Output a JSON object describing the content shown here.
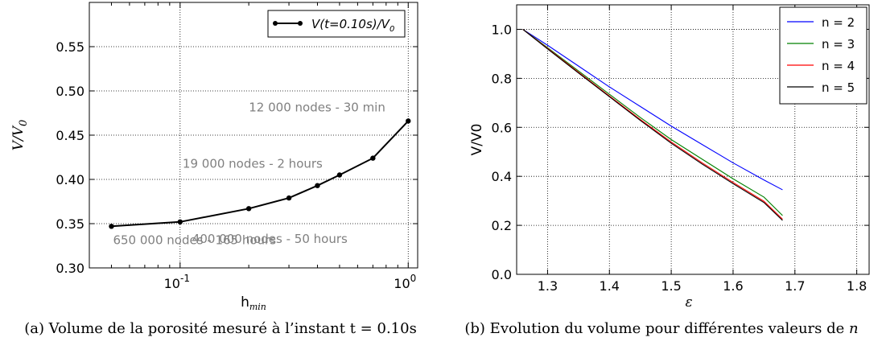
{
  "chart_data": [
    {
      "type": "line",
      "xscale": "log",
      "xlim": [
        0.04,
        1.1
      ],
      "ylim": [
        0.3,
        0.6
      ],
      "yticks": [
        "0.30",
        "0.35",
        "0.40",
        "0.45",
        "0.50",
        "0.55"
      ],
      "xticks": [
        {
          "value": 0.1,
          "base": "10",
          "exp": "-1"
        },
        {
          "value": 1.0,
          "base": "10",
          "exp": "0"
        }
      ],
      "xlabel_main": "h",
      "xlabel_sub": "min",
      "ylabel": "V/V",
      "ylabel_sub": "0",
      "grid": true,
      "legend_position": "top-right",
      "legend": "V(t=0.10s)/V",
      "legend_sub": "0",
      "series": [
        {
          "x": [
            0.05,
            0.1,
            0.2,
            0.3,
            0.4,
            0.5,
            0.7,
            1.0
          ],
          "values": [
            0.347,
            0.352,
            0.367,
            0.379,
            0.393,
            0.405,
            0.424,
            0.466
          ],
          "color": "#000000"
        }
      ],
      "annotations": [
        {
          "text": "12 000 nodes - 30 min",
          "x": 1.0,
          "y": 0.466
        },
        {
          "text": "19 000 nodes - 2 hours",
          "x": 0.5,
          "y": 0.405
        },
        {
          "text": "400 000 nodes - 50 hours",
          "x": 0.1,
          "y": 0.352
        },
        {
          "text": "650 000 nodes - 165 hours",
          "x": 0.05,
          "y": 0.347
        }
      ],
      "caption": "(a)  Volume de la porosité mesuré à l’instant t = 0.10s"
    },
    {
      "type": "line",
      "xlim": [
        1.25,
        1.82
      ],
      "ylim": [
        0.0,
        1.1
      ],
      "xticks": [
        "1.3",
        "1.4",
        "1.5",
        "1.6",
        "1.7",
        "1.8"
      ],
      "yticks": [
        "0.0",
        "0.2",
        "0.4",
        "0.6",
        "0.8",
        "1.0"
      ],
      "xlabel": "ε",
      "ylabel": "V/V0",
      "grid": true,
      "legend_position": "top-right",
      "series": [
        {
          "name": "n = 2",
          "color": "#0000ff",
          "x": [
            1.26,
            1.3,
            1.35,
            1.4,
            1.45,
            1.5,
            1.55,
            1.6,
            1.65,
            1.68
          ],
          "values": [
            1.0,
            0.935,
            0.85,
            0.765,
            0.685,
            0.605,
            0.53,
            0.455,
            0.385,
            0.345
          ]
        },
        {
          "name": "n = 3",
          "color": "#008000",
          "x": [
            1.26,
            1.3,
            1.35,
            1.4,
            1.45,
            1.5,
            1.55,
            1.6,
            1.65,
            1.68
          ],
          "values": [
            1.0,
            0.925,
            0.83,
            0.735,
            0.64,
            0.55,
            0.47,
            0.39,
            0.315,
            0.24
          ]
        },
        {
          "name": "n = 4",
          "color": "#ff0000",
          "x": [
            1.26,
            1.3,
            1.35,
            1.4,
            1.45,
            1.5,
            1.55,
            1.6,
            1.65,
            1.68
          ],
          "values": [
            1.0,
            0.922,
            0.825,
            0.728,
            0.632,
            0.54,
            0.455,
            0.375,
            0.298,
            0.225
          ]
        },
        {
          "name": "n = 5",
          "color": "#000000",
          "x": [
            1.26,
            1.3,
            1.35,
            1.4,
            1.45,
            1.5,
            1.55,
            1.6,
            1.65,
            1.68
          ],
          "values": [
            1.0,
            0.92,
            0.822,
            0.725,
            0.628,
            0.535,
            0.45,
            0.37,
            0.293,
            0.22
          ]
        }
      ],
      "caption_prefix": "(b)  Evolution du volume pour différentes valeurs de ",
      "caption_var": "n"
    }
  ]
}
